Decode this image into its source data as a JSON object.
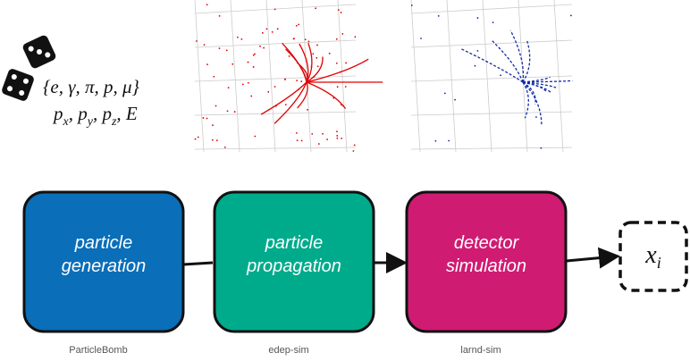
{
  "particles": "{e, γ, π, p, μ}",
  "kinematics": [
    {
      "base": "p",
      "sub": "x"
    },
    {
      "base": "p",
      "sub": "y"
    },
    {
      "base": "p",
      "sub": "z"
    },
    {
      "base": "E"
    }
  ],
  "nodes": [
    {
      "lines": [
        "particle",
        "generation"
      ],
      "caption": "ParticleBomb"
    },
    {
      "lines": [
        "particle",
        "propagation"
      ],
      "caption": "edep-sim"
    },
    {
      "lines": [
        "detector",
        "simulation"
      ],
      "caption": "larnd-sim"
    }
  ],
  "output": {
    "base": "x",
    "sub": "i"
  }
}
